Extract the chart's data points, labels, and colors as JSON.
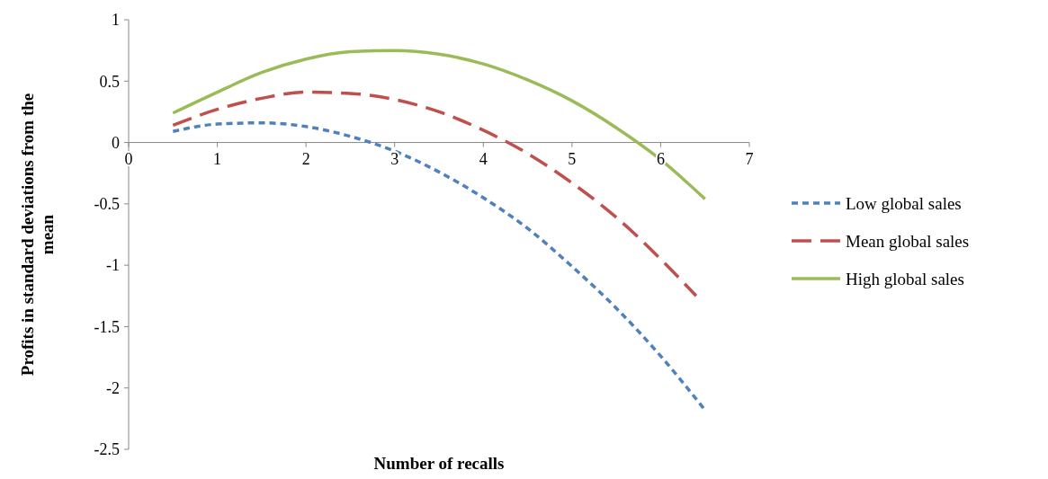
{
  "chart_data": {
    "type": "line",
    "xlabel": "Number of recalls",
    "ylabel": "Profits in standard deviations from the mean",
    "xlim": [
      0,
      7
    ],
    "xticks": [
      0,
      1,
      2,
      3,
      4,
      5,
      6,
      7
    ],
    "ylim": [
      -2.5,
      1
    ],
    "yticks": [
      -2.5,
      -2,
      -1.5,
      -1,
      -0.5,
      0,
      0.5,
      1
    ],
    "grid": false,
    "legend": "right",
    "marker": "none",
    "series": [
      {
        "name": "Low global sales",
        "color": "#4f81bd",
        "line_style": "dotted",
        "x": [
          0.5,
          1,
          1.5,
          2,
          2.5,
          3,
          3.5,
          4,
          4.5,
          5,
          5.5,
          6,
          6.5
        ],
        "values": [
          0.09,
          0.15,
          0.16,
          0.13,
          0.05,
          -0.07,
          -0.24,
          -0.45,
          -0.7,
          -1.01,
          -1.35,
          -1.74,
          -2.18
        ]
      },
      {
        "name": "Mean global sales",
        "color": "#c0504d",
        "line_style": "dashed",
        "x": [
          0.5,
          1,
          1.5,
          2,
          2.5,
          3,
          3.5,
          4,
          4.5,
          5,
          5.5,
          6,
          6.4
        ],
        "values": [
          0.14,
          0.27,
          0.36,
          0.41,
          0.4,
          0.35,
          0.25,
          0.1,
          -0.09,
          -0.33,
          -0.61,
          -0.95,
          -1.25
        ]
      },
      {
        "name": "High global sales",
        "color": "#9bbb59",
        "line_style": "solid",
        "x": [
          0.5,
          1,
          1.5,
          2,
          2.5,
          3,
          3.5,
          4,
          4.5,
          5,
          5.5,
          6,
          6.5
        ],
        "values": [
          0.24,
          0.41,
          0.57,
          0.68,
          0.74,
          0.75,
          0.72,
          0.64,
          0.51,
          0.34,
          0.12,
          -0.14,
          -0.46
        ]
      }
    ]
  }
}
